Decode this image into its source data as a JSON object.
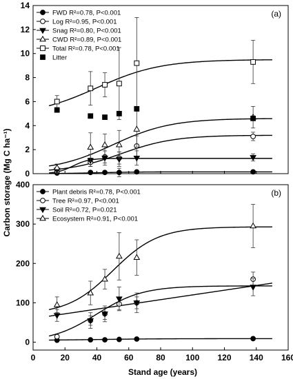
{
  "figure": {
    "ylabel": "Carbon storage (Mg C ha⁻¹)",
    "xlabel": "Stand age (years)"
  },
  "chart_data": [
    {
      "type": "scatter",
      "panel": "(a)",
      "xlim": [
        0,
        160
      ],
      "ylim": [
        0,
        14
      ],
      "xticks": [],
      "yticks": [
        0,
        2,
        4,
        6,
        8,
        10,
        12,
        14
      ],
      "legend_position": "top-left",
      "series": [
        {
          "name": "FWD",
          "stat": "R²=0.78, P<0.001",
          "marker": "filled-circle",
          "x": [
            15,
            36,
            45,
            54,
            65,
            138
          ],
          "y": [
            0.05,
            0.1,
            0.1,
            0.1,
            0.15,
            0.15
          ],
          "err": [
            0.05,
            0.1,
            0.1,
            0.35,
            0.1,
            0.1
          ],
          "fit": {
            "form": "logistic",
            "y0": 0.0,
            "A": 0.15,
            "k": 0.08,
            "x0": 40
          }
        },
        {
          "name": "Log",
          "stat": "R²=0.95, P<0.001",
          "marker": "open-circle",
          "x": [
            15,
            36,
            45,
            54,
            65,
            138
          ],
          "y": [
            0.2,
            0.95,
            1.4,
            1.3,
            2.3,
            3.1
          ],
          "err": [
            0.2,
            0.35,
            0.5,
            0.5,
            0.85,
            0.35
          ],
          "fit": {
            "form": "logistic",
            "y0": 0.1,
            "A": 3.1,
            "k": 0.06,
            "x0": 55
          }
        },
        {
          "name": "Snag",
          "stat": "R²=0.80, P<0.001",
          "marker": "filled-triangle-down",
          "x": [
            15,
            36,
            45,
            54,
            65,
            138
          ],
          "y": [
            0.3,
            1.1,
            1.3,
            1.2,
            1.3,
            1.35
          ],
          "err": [
            0.2,
            0.5,
            0.6,
            0.6,
            0.6,
            0.3
          ],
          "fit": {
            "form": "logistic",
            "y0": 0.0,
            "A": 1.27,
            "k": 0.2,
            "x0": 25
          }
        },
        {
          "name": "CWD",
          "stat": "R²=0.89, P<0.001",
          "marker": "open-triangle-up",
          "x": [
            15,
            36,
            45,
            54,
            65,
            138
          ],
          "y": [
            0.5,
            2.2,
            2.4,
            2.4,
            3.7,
            4.7
          ],
          "err": [
            0.3,
            1.2,
            0.9,
            1.2,
            1.5,
            0.9
          ],
          "fit": {
            "form": "logistic",
            "y0": 0.2,
            "A": 4.4,
            "k": 0.055,
            "x0": 50
          }
        },
        {
          "name": "Total",
          "stat": "R²=0.78, P<0.001",
          "marker": "open-square",
          "x": [
            15,
            36,
            45,
            54,
            65,
            138
          ],
          "y": [
            6.0,
            7.1,
            7.4,
            7.5,
            9.2,
            9.3
          ],
          "err": [
            0.5,
            1.4,
            1.0,
            3.0,
            3.8,
            1.8
          ],
          "fit": {
            "form": "logistic",
            "y0": 4.8,
            "A": 4.7,
            "k": 0.05,
            "x0": 40
          }
        },
        {
          "name": "Litter",
          "stat": "",
          "marker": "filled-square",
          "x": [
            15,
            36,
            45,
            54,
            65,
            138
          ],
          "y": [
            5.3,
            4.8,
            4.7,
            5.0,
            5.4,
            4.6
          ],
          "err": [
            0,
            0,
            0,
            0,
            0,
            0
          ],
          "fit": null
        }
      ]
    },
    {
      "type": "scatter",
      "panel": "(b)",
      "xlim": [
        0,
        160
      ],
      "ylim": [
        -20,
        400
      ],
      "xticks": [
        0,
        20,
        40,
        60,
        80,
        100,
        120,
        140,
        160
      ],
      "yticks": [
        0,
        100,
        200,
        300,
        400
      ],
      "legend_position": "top-left",
      "series": [
        {
          "name": "Plant debris",
          "stat": "R²=0.78, P<0.001",
          "marker": "filled-circle",
          "x": [
            15,
            36,
            45,
            54,
            65,
            138
          ],
          "y": [
            5,
            6,
            6,
            7,
            8,
            9
          ],
          "err": [
            2,
            2,
            2,
            3,
            3,
            3
          ],
          "fit": {
            "form": "logistic",
            "y0": 4.5,
            "A": 4.5,
            "k": 0.05,
            "x0": 40
          }
        },
        {
          "name": "Tree",
          "stat": "R²=0.97, P<0.001",
          "marker": "open-circle",
          "x": [
            15,
            36,
            45,
            54,
            65,
            138
          ],
          "y": [
            14,
            55,
            72,
            97,
            100,
            160
          ],
          "err": [
            5,
            12,
            14,
            15,
            15,
            18
          ],
          "fit": {
            "form": "logistic",
            "y0": 0,
            "A": 143,
            "k": 0.07,
            "x0": 40
          }
        },
        {
          "name": "Soil",
          "stat": "R²=0.72, P=0.021",
          "marker": "filled-triangle-down",
          "x": [
            15,
            36,
            45,
            54,
            65,
            138
          ],
          "y": [
            68,
            55,
            72,
            110,
            100,
            140
          ],
          "err": [
            15,
            20,
            20,
            30,
            25,
            22
          ],
          "fit": {
            "form": "linear",
            "a": 60,
            "b": 0.6
          }
        },
        {
          "name": "Ecosystem",
          "stat": "R²=0.91, P<0.001",
          "marker": "open-triangle-up",
          "x": [
            15,
            36,
            45,
            54,
            65,
            138
          ],
          "y": [
            95,
            125,
            160,
            218,
            215,
            295
          ],
          "err": [
            20,
            30,
            25,
            60,
            45,
            55
          ],
          "fit": {
            "form": "logistic",
            "y0": 70,
            "A": 223,
            "k": 0.07,
            "x0": 50
          }
        }
      ]
    }
  ]
}
